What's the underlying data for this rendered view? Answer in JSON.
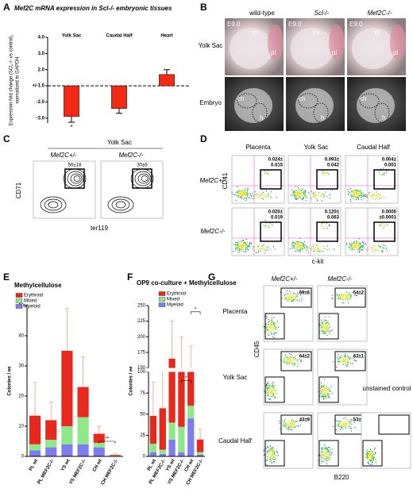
{
  "panel_labels": [
    "A",
    "B",
    "C",
    "D",
    "E",
    "F",
    "G"
  ],
  "chart_data": [
    {
      "type": "bar",
      "title": "Mef2C mRNA expression in Scl-/- embryonic tissues",
      "y_label": [
        "Expression fold change (SCL-/- vs control),",
        "normalized to GAPDH"
      ],
      "categories": [
        "Yolk Sac",
        "Caudal Half",
        "Heart"
      ],
      "values": [
        -2.9,
        -2.4,
        1.7
      ],
      "errors": [
        0.35,
        0.3,
        0.3
      ],
      "color": "#f02a14",
      "ylim": [
        -3.3,
        4
      ],
      "yticks": [
        {
          "value": 4,
          "label": "4.0"
        },
        {
          "value": 3,
          "label": "3.0"
        },
        {
          "value": 2,
          "label": "2.0"
        },
        {
          "value": 1,
          "label": "+/-1.0"
        },
        {
          "value": -2,
          "label": "-2.0"
        },
        {
          "value": -3,
          "label": "-3.0"
        }
      ],
      "reference_line": 1,
      "annotations": [
        "*"
      ]
    },
    {
      "type": "stacked_bar",
      "title": "Methylcellulose",
      "y_label": "Colonies / ee",
      "categories": [
        "PL wt",
        "PL MEF2C-/-",
        "YS wt",
        "YS MEF2C-/-",
        "CH wt",
        "CH MEF2C-/-"
      ],
      "series": [
        {
          "name": "Erythroid",
          "color": "#e8281c",
          "values": [
            9.5,
            6.5,
            25,
            10,
            3,
            0.2
          ]
        },
        {
          "name": "Mixed",
          "color": "#8ee88a",
          "values": [
            2,
            2.5,
            6,
            9,
            1.5,
            0.1
          ]
        },
        {
          "name": "Myeloid",
          "color": "#7d7df0",
          "values": [
            2,
            3,
            4,
            4,
            3,
            0.2
          ]
        }
      ],
      "errors": [
        11,
        6,
        14,
        10,
        2.5,
        0.3
      ],
      "ylim": [
        0,
        50
      ],
      "yticks": [
        0,
        10,
        20,
        30,
        40,
        50
      ],
      "annotations": [
        "**"
      ]
    },
    {
      "type": "stacked_bar",
      "title": "OP9 co-culture + Methylcellulose",
      "y_label": "Colonies / ee",
      "categories": [
        "PL wt",
        "PL MEF2C-/-",
        "YS wt",
        "YS MEF2C-/-",
        "CH wt",
        "CH MEF2C-/-"
      ],
      "series": [
        {
          "name": "Erythroid",
          "color": "#e8281c",
          "values": [
            33,
            49,
            125,
            115,
            85,
            15
          ]
        },
        {
          "name": "Mixed",
          "color": "#8ee88a",
          "values": [
            10,
            5,
            20,
            30,
            15,
            3
          ]
        },
        {
          "name": "Myeloid",
          "color": "#7d7df0",
          "values": [
            5,
            3,
            20,
            5,
            45,
            2
          ]
        }
      ],
      "errors": [
        40,
        45,
        60,
        50,
        40,
        12
      ],
      "ylim": [
        0,
        250
      ],
      "ybreak": [
        100,
        150
      ],
      "yticks": [
        0,
        25,
        50,
        75,
        100,
        150,
        175,
        200,
        225,
        250
      ],
      "annotations": [
        "*",
        "*"
      ]
    }
  ],
  "photos": {
    "columns": [
      "wild-type",
      "Scl-/-",
      "Mef2C-/-"
    ],
    "rows": [
      "Yolk Sac",
      "Embryo"
    ],
    "stage": "E9.0",
    "marks": [
      [
        "ys",
        "pl"
      ],
      [
        "ch",
        "h"
      ]
    ]
  },
  "flow_c": {
    "title": "Yolk Sac",
    "columns": [
      "Mef2C+/-",
      "Mef2C-/-"
    ],
    "gates": [
      "56±18",
      "30±6"
    ],
    "y_label": "CD71",
    "x_label": "ter119"
  },
  "flow_d": {
    "columns": [
      "Placenta",
      "Yolk Sac",
      "Caudal Half"
    ],
    "rows": [
      "Mef2C+/-",
      "Mef2C-/-"
    ],
    "gates": [
      [
        [
          "0.024±",
          "0.015"
        ],
        [
          "0.093±",
          "0.042"
        ],
        [
          "0.004±",
          "0.001"
        ]
      ],
      [
        [
          "0.020±",
          "0.019"
        ],
        [
          "0.120±",
          "0.063"
        ],
        [
          "0.0005",
          "±0.0001"
        ]
      ]
    ],
    "y_label": "CD41",
    "x_label": "c-kit"
  },
  "flow_g": {
    "columns": [
      "Mef2C+/-",
      "Mef2C-/-"
    ],
    "rows": [
      "Placenta",
      "Yolk Sac",
      "Caudal Half"
    ],
    "gates": [
      [
        "69±6",
        "54±2"
      ],
      [
        "64±2",
        "63±1"
      ],
      [
        "43±9",
        "53±1"
      ]
    ],
    "control": "unstained control",
    "y_label": "CD45",
    "x_label": "B220"
  }
}
